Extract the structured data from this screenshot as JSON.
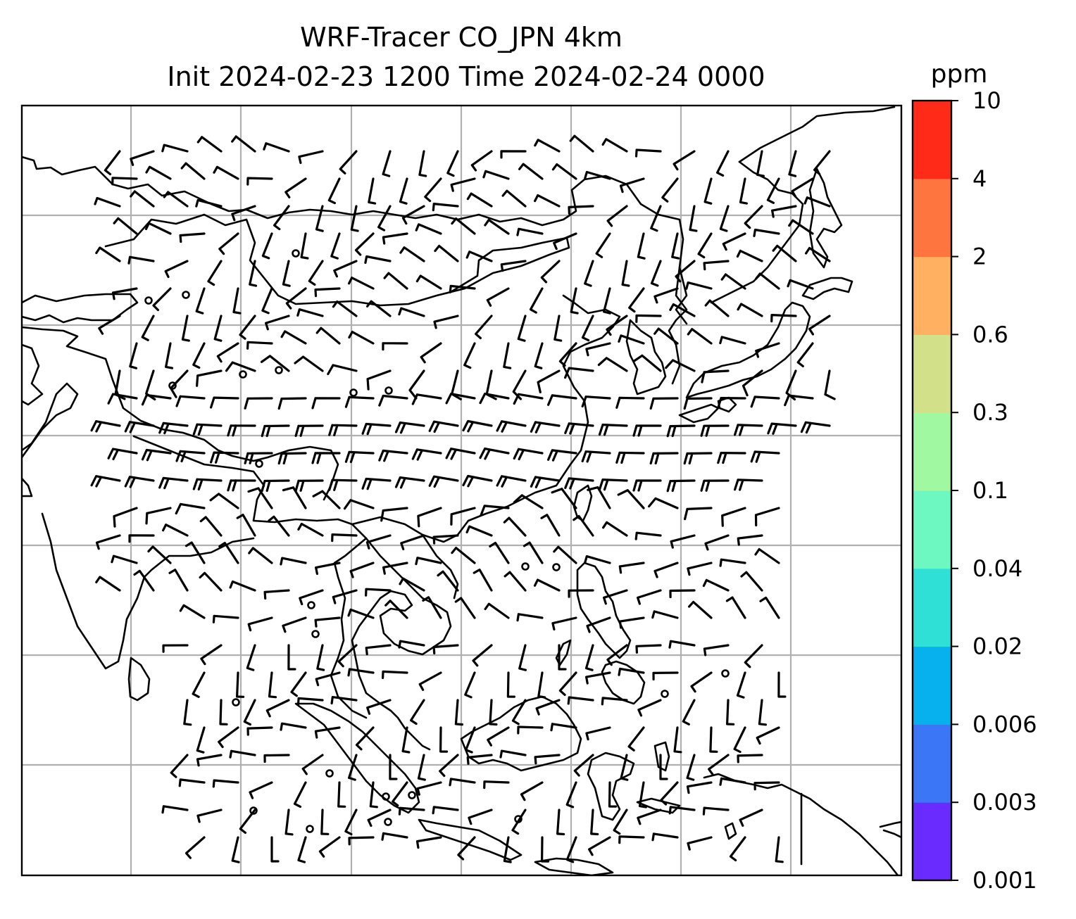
{
  "title": {
    "line1": "WRF-Tracer CO_JPN 4km",
    "line2": "Init 2024-02-23 1200 Time 2024-02-24 0000"
  },
  "colorbar": {
    "unit": "ppm",
    "levels": [
      "0.001",
      "0.003",
      "0.006",
      "0.02",
      "0.04",
      "0.1",
      "0.3",
      "0.6",
      "2",
      "4",
      "10"
    ],
    "colors": [
      "#6a2bff",
      "#3a76f5",
      "#07b1ee",
      "#2ee0d6",
      "#6cf8c0",
      "#a0f8a0",
      "#d2e08a",
      "#ffb060",
      "#ff7540",
      "#ff2a18"
    ]
  },
  "map": {
    "background": "#ffffff",
    "gridlines": true,
    "coastline_color": "#000000",
    "wind_barbs": true
  }
}
